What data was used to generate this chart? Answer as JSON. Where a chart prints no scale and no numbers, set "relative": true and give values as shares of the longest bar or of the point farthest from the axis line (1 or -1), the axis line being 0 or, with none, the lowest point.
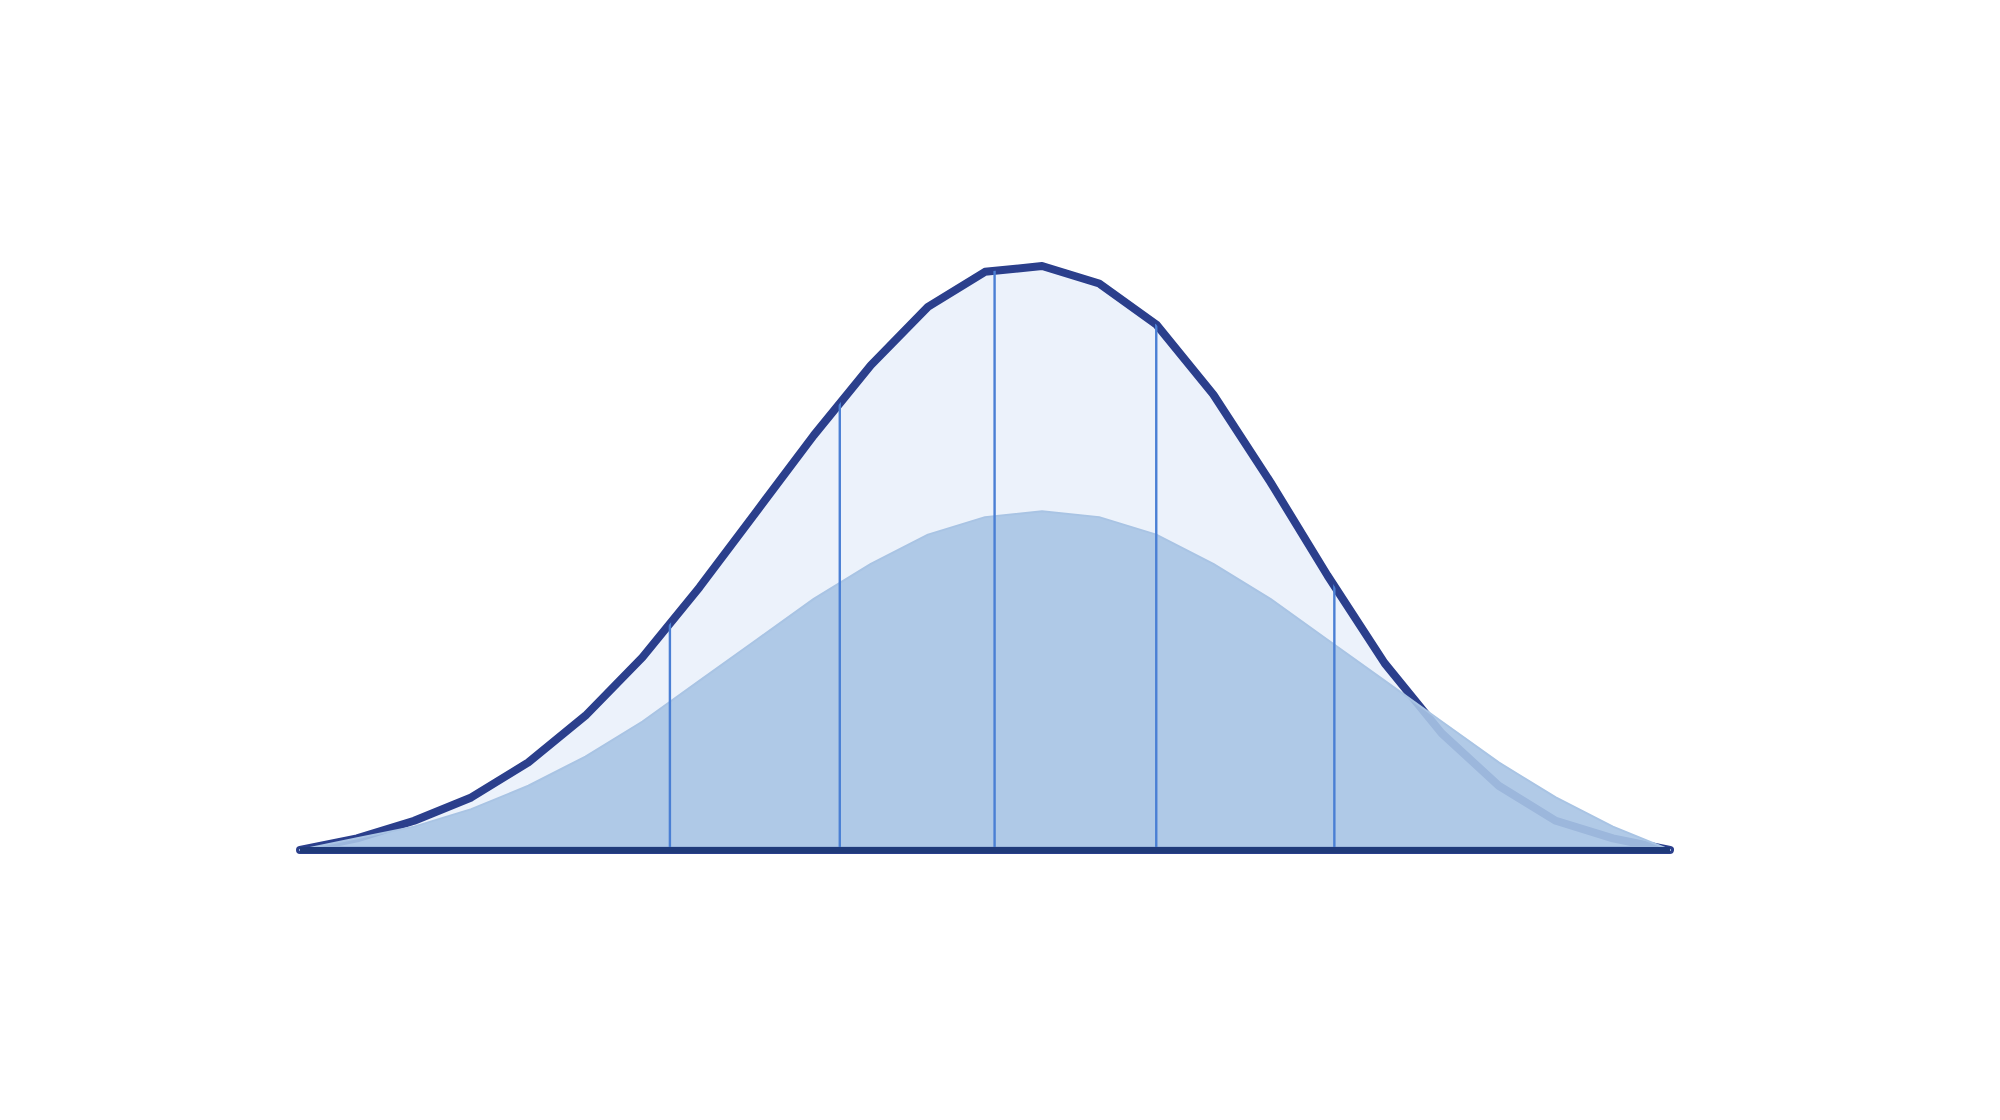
{
  "chart_data": {
    "type": "area",
    "relative": true,
    "categories": [
      null,
      null,
      null,
      null,
      null,
      null,
      null,
      null,
      null,
      null,
      null,
      null,
      null,
      null,
      null,
      null,
      null,
      null,
      null,
      null,
      null,
      null,
      null,
      null,
      null
    ],
    "series": [
      {
        "color": "#2b3f8c",
        "values": [
          0,
          0.02,
          0.05,
          0.09,
          0.15,
          0.23,
          0.33,
          0.45,
          0.58,
          0.71,
          0.83,
          0.93,
          0.99,
          1,
          0.97,
          0.9,
          0.78,
          0.63,
          0.47,
          0.32,
          0.2,
          0.11,
          0.05,
          0.02,
          0
        ]
      },
      {
        "color": "#a9c4e4",
        "values": [
          0,
          0.02,
          0.04,
          0.07,
          0.11,
          0.16,
          0.22,
          0.29,
          0.36,
          0.43,
          0.49,
          0.54,
          0.57,
          0.58,
          0.57,
          0.54,
          0.49,
          0.43,
          0.36,
          0.29,
          0.22,
          0.15,
          0.09,
          0.04,
          0
        ]
      }
    ]
  }
}
